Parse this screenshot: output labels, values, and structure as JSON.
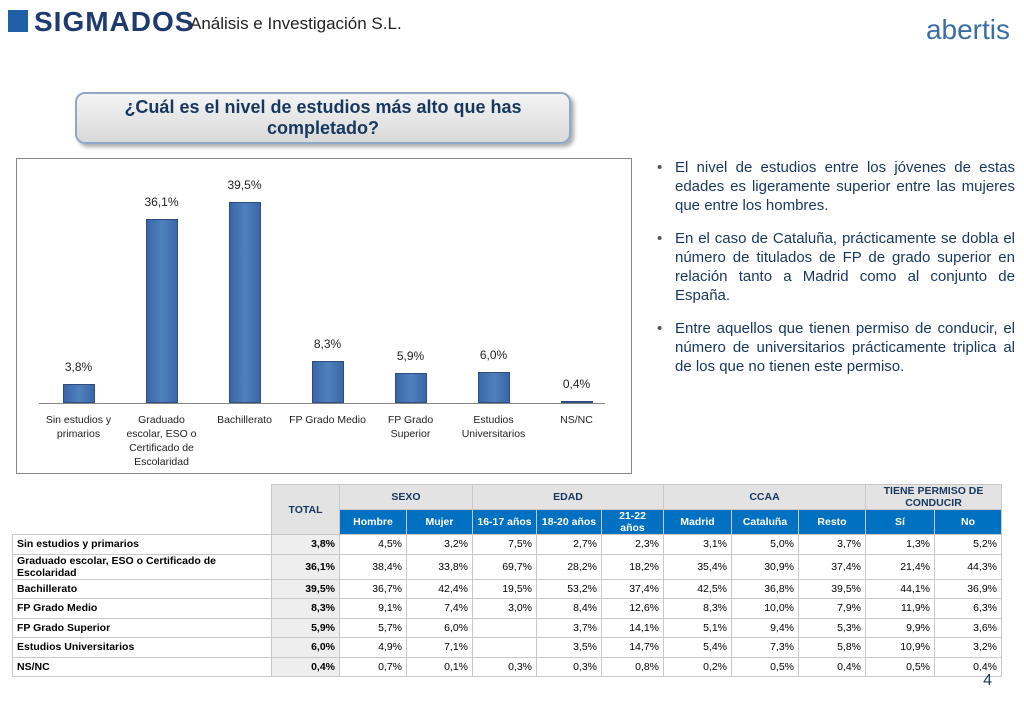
{
  "header": {
    "brand": "SIGMADOS",
    "subtitle": "Análisis e Investigación S.L.",
    "partner": "abertis"
  },
  "question": "¿Cuál es el nivel de estudios más alto que has completado?",
  "chart_data": {
    "type": "bar",
    "categories": [
      "Sin estudios y primarios",
      "Graduado escolar, ESO o Certificado de Escolaridad",
      "Bachillerato",
      "FP Grado Medio",
      "FP Grado Superior",
      "Estudios Universitarios",
      "NS/NC"
    ],
    "values": [
      3.8,
      36.1,
      39.5,
      8.3,
      5.9,
      6.0,
      0.4
    ],
    "value_labels": [
      "3,8%",
      "36,1%",
      "39,5%",
      "8,3%",
      "5,9%",
      "6,0%",
      "0,4%"
    ],
    "color": "#4f81bd"
  },
  "bullets": [
    "El nivel de estudios entre los jóvenes de estas edades es ligeramente superior entre las mujeres que entre los hombres.",
    "En el caso de Cataluña, prácticamente se dobla el número de titulados de FP de grado superior en relación tanto a Madrid como al conjunto de España.",
    "Entre aquellos que tienen permiso de conducir, el número de universitarios prácticamente triplica al de los que no tienen este permiso."
  ],
  "table": {
    "total_header": "TOTAL",
    "groups": [
      {
        "label": "SEXO",
        "columns": [
          "Hombre",
          "Mujer"
        ]
      },
      {
        "label": "EDAD",
        "columns": [
          "16-17 años",
          "18-20 años",
          "21-22 años"
        ]
      },
      {
        "label": "CCAA",
        "columns": [
          "Madrid",
          "Cataluña",
          "Resto"
        ]
      },
      {
        "label": "TIENE PERMISO DE CONDUCIR",
        "columns": [
          "Sí",
          "No"
        ]
      }
    ],
    "rows": [
      {
        "label": "Sin estudios y primarios",
        "total": "3,8%",
        "values": [
          "4,5%",
          "3,2%",
          "7,5%",
          "2,7%",
          "2,3%",
          "3,1%",
          "5,0%",
          "3,7%",
          "1,3%",
          "5,2%"
        ]
      },
      {
        "label": "Graduado escolar, ESO o Certificado de Escolaridad",
        "total": "36,1%",
        "values": [
          "38,4%",
          "33,8%",
          "69,7%",
          "28,2%",
          "18,2%",
          "35,4%",
          "30,9%",
          "37,4%",
          "21,4%",
          "44,3%"
        ]
      },
      {
        "label": "Bachillerato",
        "total": "39,5%",
        "values": [
          "36,7%",
          "42,4%",
          "19,5%",
          "53,2%",
          "37,4%",
          "42,5%",
          "36,8%",
          "39,5%",
          "44,1%",
          "36,9%"
        ]
      },
      {
        "label": "FP Grado Medio",
        "total": "8,3%",
        "values": [
          "9,1%",
          "7,4%",
          "3,0%",
          "8,4%",
          "12,6%",
          "8,3%",
          "10,0%",
          "7,9%",
          "11,9%",
          "6,3%"
        ]
      },
      {
        "label": "FP Grado Superior",
        "total": "5,9%",
        "values": [
          "5,7%",
          "6,0%",
          null,
          "3,7%",
          "14,1%",
          "5,1%",
          "9,4%",
          "5,3%",
          "9,9%",
          "3,6%"
        ]
      },
      {
        "label": "Estudios Universitarios",
        "total": "6,0%",
        "values": [
          "4,9%",
          "7,1%",
          null,
          "3,5%",
          "14,7%",
          "5,4%",
          "7,3%",
          "5,8%",
          "10,9%",
          "3,2%"
        ]
      },
      {
        "label": "NS/NC",
        "total": "0,4%",
        "values": [
          "0,7%",
          "0,1%",
          "0,3%",
          "0,3%",
          "0,8%",
          "0,2%",
          "0,5%",
          "0,4%",
          "0,5%",
          "0,4%"
        ]
      }
    ]
  },
  "page_number": "4"
}
